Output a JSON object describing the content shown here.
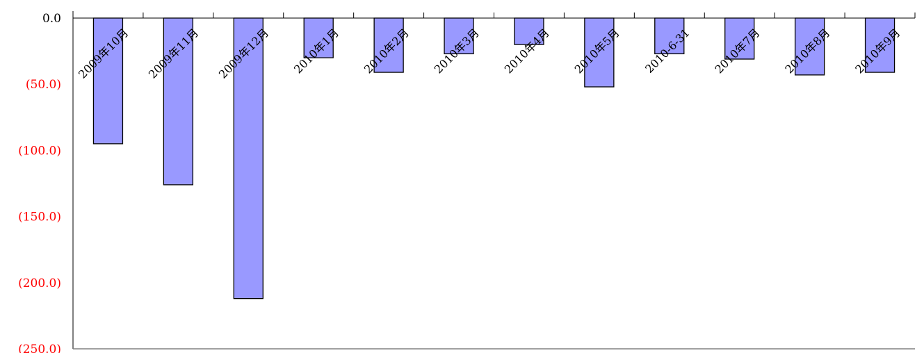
{
  "chart_data": {
    "type": "bar",
    "title": "",
    "xlabel": "",
    "ylabel": "",
    "categories": [
      "2009年10月",
      "2009年11月",
      "2009年12月",
      "2010年1月",
      "2010年2月",
      "2010年3月",
      "2010年4月",
      "2010年5月",
      "2010-6-31",
      "2010年7月",
      "2010年8月",
      "2010年9月"
    ],
    "values": [
      -95,
      -126,
      -212,
      -30,
      -41,
      -27,
      -20,
      -52,
      -27,
      -31,
      -43,
      -41
    ],
    "ylim": [
      -250,
      0
    ],
    "yticks": [
      {
        "value": 0,
        "label": "0.0"
      },
      {
        "value": -50,
        "label": "(50.0)"
      },
      {
        "value": -100,
        "label": "(100.0)"
      },
      {
        "value": -150,
        "label": "(150.0)"
      },
      {
        "value": -200,
        "label": "(200.0)"
      },
      {
        "value": -250,
        "label": "(250.0)"
      }
    ],
    "x_axis_position": "top",
    "grid": false,
    "legend": "none",
    "colors": {
      "bar_fill": "#9999ff",
      "bar_stroke": "#000000",
      "positive_tick": "#000000",
      "negative_tick": "#ff0000",
      "axis": "#000000",
      "baseline": "#808080"
    }
  }
}
